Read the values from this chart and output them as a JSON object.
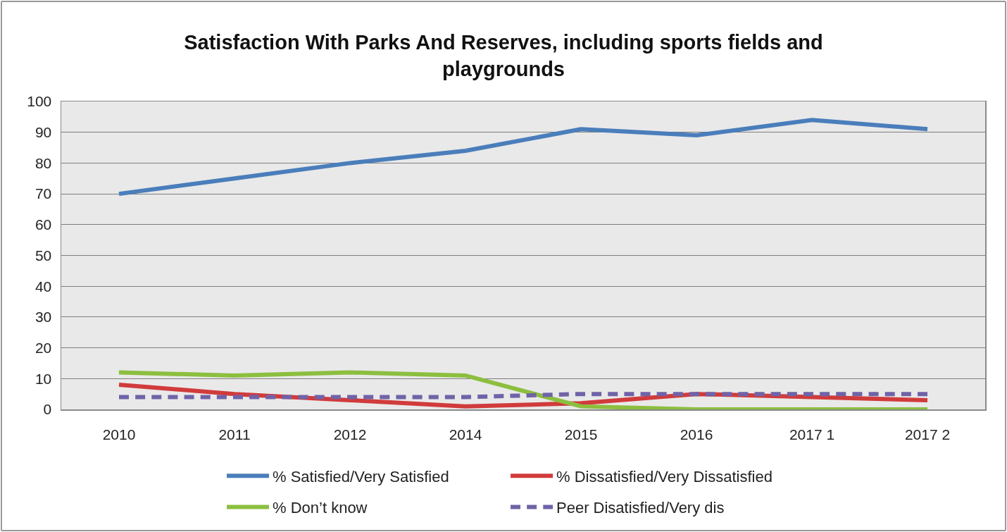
{
  "chart_data": {
    "type": "line",
    "title": "Satisfaction With Parks And Reserves, including sports fields and playgrounds",
    "categories": [
      "2010",
      "2011",
      "2012",
      "2014",
      "2015",
      "2016",
      "2017 1",
      "2017 2"
    ],
    "series": [
      {
        "name": "% Satisfied/Very Satisfied",
        "color": "#4a7ebb",
        "values": [
          70,
          75,
          80,
          84,
          91,
          89,
          94,
          91
        ]
      },
      {
        "name": "% Dissatisfied/Very Dissatisfied",
        "color": "#d13b3b",
        "values": [
          8,
          5,
          3,
          1,
          2,
          5,
          4,
          3
        ]
      },
      {
        "name": "% Don’t know",
        "color": "#8cbf3f",
        "values": [
          12,
          11,
          12,
          11,
          1,
          0,
          0,
          0
        ]
      },
      {
        "name": "Peer Disatisfied/Very dis",
        "color": "#7063a8",
        "values": [
          4,
          4,
          4,
          4,
          5,
          5,
          5,
          5
        ],
        "line_style": "dashed"
      }
    ],
    "ylim": [
      0,
      100
    ],
    "yticks": [
      0,
      10,
      20,
      30,
      40,
      50,
      60,
      70,
      80,
      90,
      100
    ],
    "grid": "y",
    "legend": "bottom",
    "marker": "none",
    "line_style": "solid"
  }
}
